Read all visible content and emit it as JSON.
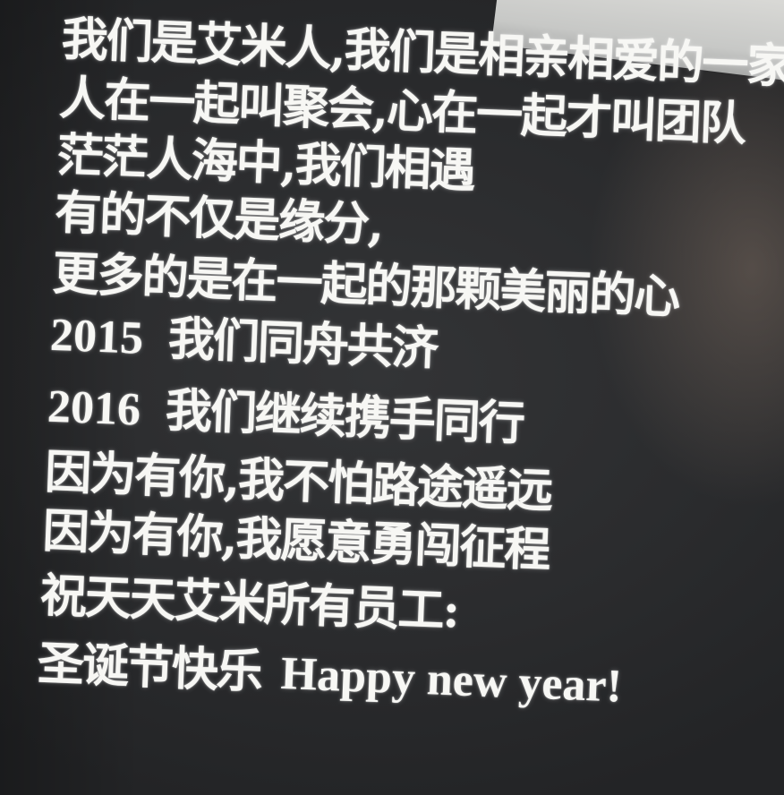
{
  "poem": {
    "lines": [
      "我们是艾米人,我们是相亲相爱的一家人",
      "人在一起叫聚会,心在一起才叫团队",
      "茫茫人海中,我们相遇",
      "有的不仅是缘分,",
      "更多的是在一起的那颗美丽的心",
      {
        "year": "2015",
        "text": "我们同舟共济"
      },
      {
        "year": "2016",
        "text": "我们继续携手同行"
      },
      "因为有你,我不怕路途遥远",
      "因为有你,我愿意勇闯征程",
      "祝天天艾米所有员工:",
      {
        "text": "圣诞节快乐",
        "latin": "Happy new year!"
      }
    ]
  }
}
